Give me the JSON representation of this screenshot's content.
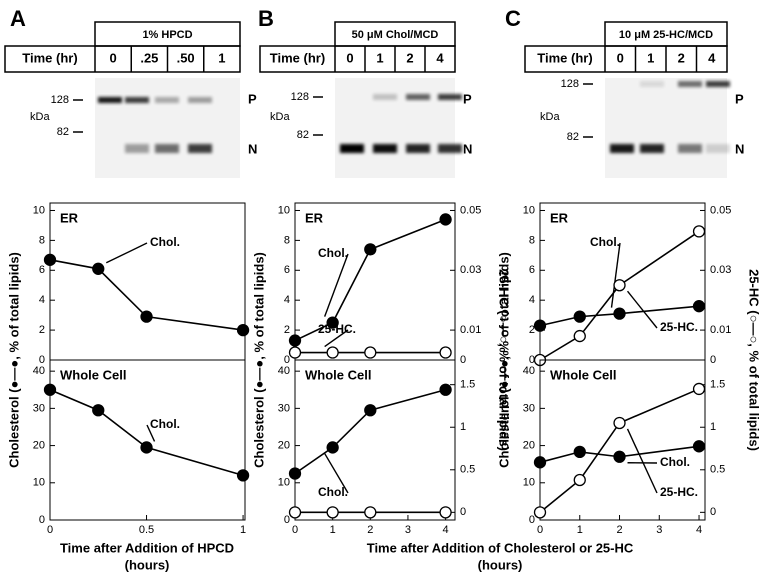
{
  "panels": [
    {
      "letter": "A",
      "treatment": "1% HPCD",
      "time_label": "Time (hr)",
      "times": [
        "0",
        ".25",
        ".50",
        "1"
      ],
      "markers": [
        "128",
        "82"
      ],
      "kda": "kDa",
      "bands": [
        "P",
        "N"
      ],
      "y_label": "Cholesterol (●—●, % of total lipids)"
    },
    {
      "letter": "B",
      "treatment": "50 μM Chol/MCD",
      "time_label": "Time (hr)",
      "times": [
        "0",
        "1",
        "2",
        "4"
      ],
      "markers": [
        "128",
        "82"
      ],
      "kda": "kDa",
      "bands": [
        "P",
        "N"
      ],
      "y_label": "Cholesterol (●—●, % of total lipids)",
      "y2_label": "25-HC (○—○, % of total lipids)"
    },
    {
      "letter": "C",
      "treatment": "10 μM 25-HC/MCD",
      "time_label": "Time (hr)",
      "times": [
        "0",
        "1",
        "2",
        "4"
      ],
      "markers": [
        "128",
        "82"
      ],
      "kda": "kDa",
      "bands": [
        "P",
        "N"
      ],
      "y_label": "Cholesterol (●—●, % of total lipids)",
      "y2_label": "25-HC (○—○, % of total lipids)"
    }
  ],
  "x_labels": [
    {
      "text": "Time after Addition of HPCD",
      "sub": "(hours)"
    },
    {
      "text": "Time after Addition of Cholesterol or 25-HC",
      "sub": "(hours)"
    }
  ],
  "chart_data": [
    {
      "type": "line",
      "title": "ER",
      "x": [
        0,
        0.25,
        0.5,
        1
      ],
      "xlim": [
        0,
        1.01
      ],
      "ylim": [
        0,
        10.5
      ],
      "yticks": [
        0,
        2,
        4,
        6,
        8,
        10
      ],
      "series": [
        {
          "name": "Chol.",
          "color": "#000000",
          "values": [
            6.7,
            6.1,
            2.9,
            2.0
          ]
        }
      ]
    },
    {
      "type": "line",
      "title": "Whole Cell",
      "x": [
        0,
        0.25,
        0.5,
        1
      ],
      "xlim": [
        0,
        1.01
      ],
      "xticks": [
        0,
        0.5,
        1
      ],
      "ylim": [
        0,
        43
      ],
      "yticks": [
        0,
        10,
        20,
        30,
        40
      ],
      "series": [
        {
          "name": "Chol.",
          "color": "#000000",
          "values": [
            35,
            29.5,
            19.5,
            12
          ]
        }
      ]
    },
    {
      "type": "line",
      "title": "ER",
      "x": [
        0,
        1,
        2,
        4
      ],
      "xlim": [
        0,
        4.25
      ],
      "ylim": [
        0,
        10.5
      ],
      "yticks": [
        0,
        2,
        4,
        6,
        8,
        10
      ],
      "y2lim": [
        0,
        0.0525
      ],
      "y2ticks": [
        0,
        0.01,
        0.03,
        0.05
      ],
      "series": [
        {
          "name": "Chol.",
          "color": "#000000",
          "values": [
            1.3,
            2.5,
            7.4,
            9.4
          ]
        },
        {
          "name": "25-HC.",
          "color": "#ffffff",
          "axis": "y2",
          "values": [
            0.0025,
            0.0025,
            0.0025,
            0.0025
          ]
        }
      ]
    },
    {
      "type": "line",
      "title": "Whole Cell",
      "x": [
        0,
        1,
        2,
        4
      ],
      "xlim": [
        0,
        4.25
      ],
      "xticks": [
        0,
        1,
        2,
        3,
        4
      ],
      "ylim": [
        0,
        43
      ],
      "yticks": [
        0,
        10,
        20,
        30,
        40
      ],
      "y2lim": [
        -0.09,
        1.79
      ],
      "y2ticks": [
        0,
        0.5,
        1,
        1.5
      ],
      "series": [
        {
          "name": "Chol.",
          "color": "#000000",
          "values": [
            12.5,
            19.5,
            29.5,
            35
          ]
        },
        {
          "name": "25-HC.",
          "color": "#ffffff",
          "axis": "y2",
          "values": [
            0,
            0,
            0,
            0
          ]
        }
      ]
    },
    {
      "type": "line",
      "title": "ER",
      "x": [
        0,
        1,
        2,
        4
      ],
      "xlim": [
        0,
        4.15
      ],
      "ylim": [
        0,
        10.5
      ],
      "yticks": [
        0,
        2,
        4,
        6,
        8,
        10
      ],
      "y2lim": [
        0,
        0.0525
      ],
      "y2ticks": [
        0,
        0.01,
        0.03,
        0.05
      ],
      "series": [
        {
          "name": "Chol.",
          "color": "#000000",
          "values": [
            2.3,
            2.9,
            3.1,
            3.6
          ]
        },
        {
          "name": "25-HC.",
          "color": "#ffffff",
          "axis": "y2",
          "values": [
            0,
            0.008,
            0.025,
            0.043
          ]
        }
      ]
    },
    {
      "type": "line",
      "title": "Whole Cell",
      "x": [
        0,
        1,
        2,
        4
      ],
      "xlim": [
        0,
        4.15
      ],
      "xticks": [
        0,
        1,
        2,
        3,
        4
      ],
      "ylim": [
        0,
        43
      ],
      "yticks": [
        0,
        10,
        20,
        30,
        40
      ],
      "y2lim": [
        -0.09,
        1.79
      ],
      "y2ticks": [
        0,
        0.5,
        1,
        1.5
      ],
      "series": [
        {
          "name": "Chol.",
          "color": "#000000",
          "values": [
            15.5,
            18.3,
            17,
            19.8
          ]
        },
        {
          "name": "25-HC.",
          "color": "#ffffff",
          "axis": "y2",
          "values": [
            0,
            0.38,
            1.05,
            1.45
          ]
        }
      ]
    }
  ]
}
